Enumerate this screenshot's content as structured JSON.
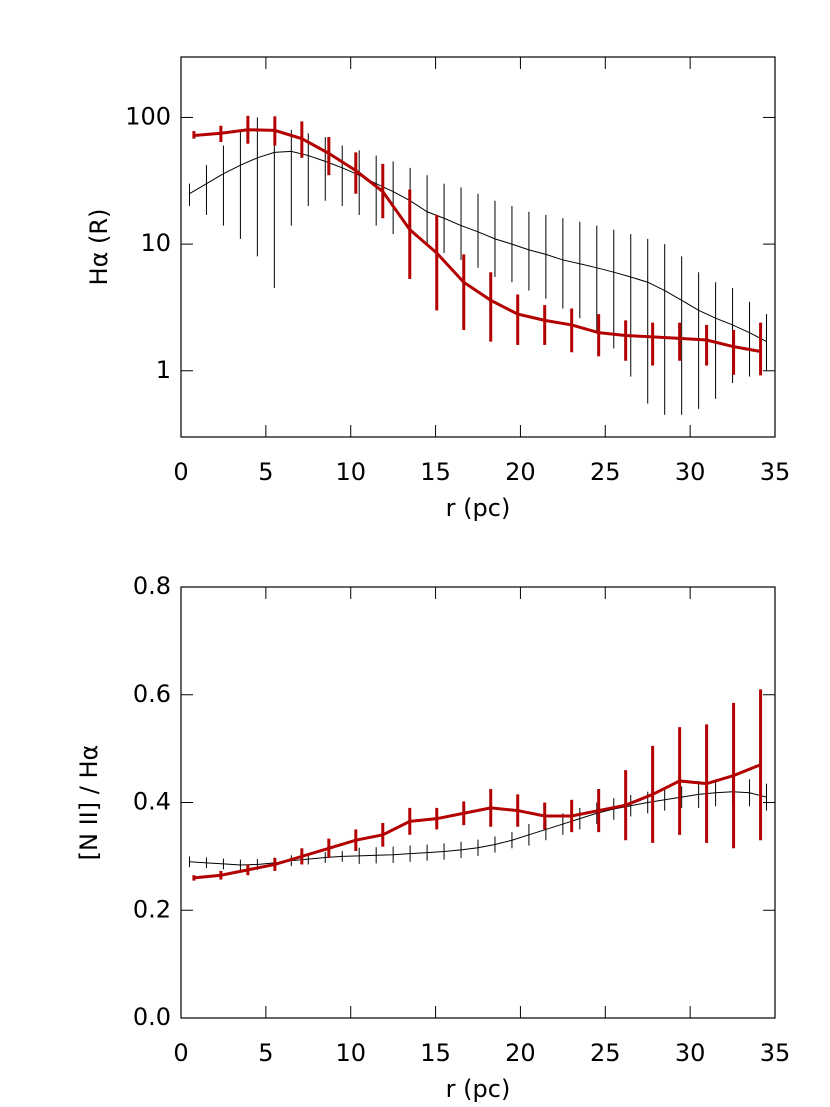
{
  "chart_data": [
    {
      "type": "line",
      "x_label": "r (pc)",
      "y_label": "Hα (R)",
      "log_y": true,
      "xlim": [
        0,
        35
      ],
      "xticks": [
        0,
        5,
        10,
        15,
        20,
        25,
        30,
        35
      ],
      "ylim": [
        0.3,
        300
      ],
      "yticks": [
        1,
        10,
        100
      ],
      "series": [
        {
          "color": "#000000",
          "x": [
            0.5,
            1.5,
            2.5,
            3.5,
            4.5,
            5.5,
            6.5,
            7.5,
            8.5,
            9.5,
            10.5,
            11.5,
            12.5,
            13.5,
            14.5,
            15.5,
            16.5,
            17.5,
            18.5,
            19.5,
            20.5,
            21.5,
            22.5,
            23.5,
            24.5,
            25.5,
            26.5,
            27.5,
            28.5,
            29.5,
            30.5,
            31.5,
            32.5,
            33.5,
            34.5
          ],
          "values": [
            25,
            30,
            36,
            42,
            48,
            53,
            54,
            50,
            45,
            40,
            35,
            30,
            26,
            22,
            18,
            16,
            14,
            12.5,
            11,
            10,
            9,
            8.3,
            7.5,
            7,
            6.5,
            6,
            5.5,
            5,
            4.3,
            3.6,
            3,
            2.6,
            2.3,
            2,
            1.7
          ],
          "lower": [
            20,
            17,
            14,
            11,
            8,
            4.5,
            14,
            20,
            22,
            20,
            17,
            14,
            12,
            11,
            10,
            8.5,
            7.5,
            6.5,
            5.5,
            5,
            4.3,
            3.7,
            3.1,
            2.6,
            2,
            1.5,
            0.9,
            0.55,
            0.45,
            0.45,
            0.5,
            0.6,
            0.8,
            0.9,
            1.0
          ],
          "upper": [
            30,
            42,
            60,
            80,
            100,
            90,
            80,
            75,
            70,
            60,
            55,
            50,
            45,
            40,
            35,
            30,
            28,
            25,
            22,
            20,
            18,
            17,
            16,
            15,
            14,
            13,
            12,
            11,
            10,
            8,
            6,
            5,
            4.5,
            3.5,
            2.8
          ]
        },
        {
          "color": "#b30000",
          "x": [
            0.76,
            2.35,
            3.94,
            5.53,
            7.12,
            8.71,
            10.3,
            11.89,
            13.48,
            15.07,
            16.66,
            18.25,
            19.84,
            21.43,
            23.02,
            24.61,
            26.2,
            27.79,
            29.38,
            30.97,
            32.56,
            34.15
          ],
          "values": [
            72,
            75,
            80,
            79,
            68,
            52,
            38,
            26,
            13,
            8.5,
            5,
            3.6,
            2.8,
            2.5,
            2.3,
            2.0,
            1.9,
            1.85,
            1.8,
            1.75,
            1.55,
            1.42
          ],
          "lower": [
            68,
            64,
            62,
            60,
            48,
            35,
            25,
            16,
            5.3,
            3,
            2.1,
            1.7,
            1.6,
            1.6,
            1.4,
            1.3,
            1.2,
            1.1,
            1.2,
            1.1,
            0.93,
            0.92
          ],
          "upper": [
            78,
            86,
            103,
            102,
            93,
            70,
            53,
            43,
            27,
            17,
            8.3,
            6,
            4,
            3.3,
            3.1,
            2.8,
            2.5,
            2.4,
            2.4,
            2.3,
            2.1,
            2.4
          ]
        }
      ]
    },
    {
      "type": "line",
      "x_label": "r (pc)",
      "y_label": "[N II] / Hα",
      "xlim": [
        0,
        35
      ],
      "xticks": [
        0,
        5,
        10,
        15,
        20,
        25,
        30,
        35
      ],
      "ylim": [
        0,
        0.8
      ],
      "yticks": [
        {
          "value": 0,
          "label": "0.0"
        },
        0.2,
        0.4,
        0.6,
        0.8
      ],
      "series": [
        {
          "color": "#000000",
          "x": [
            0.5,
            1.5,
            2.5,
            3.5,
            4.5,
            5.5,
            6.5,
            7.5,
            8.5,
            9.5,
            10.5,
            11.5,
            12.5,
            13.5,
            14.5,
            15.5,
            16.5,
            17.5,
            18.5,
            19.5,
            20.5,
            21.5,
            22.5,
            23.5,
            24.5,
            25.5,
            26.5,
            27.5,
            28.5,
            29.5,
            30.5,
            31.5,
            32.5,
            33.5,
            34.5
          ],
          "values": [
            0.29,
            0.288,
            0.286,
            0.284,
            0.285,
            0.288,
            0.292,
            0.295,
            0.298,
            0.3,
            0.301,
            0.302,
            0.303,
            0.305,
            0.307,
            0.309,
            0.312,
            0.316,
            0.322,
            0.33,
            0.34,
            0.35,
            0.36,
            0.37,
            0.38,
            0.388,
            0.394,
            0.4,
            0.405,
            0.41,
            0.415,
            0.418,
            0.42,
            0.418,
            0.41
          ],
          "error": [
            0.01,
            0.01,
            0.01,
            0.01,
            0.01,
            0.01,
            0.01,
            0.01,
            0.01,
            0.01,
            0.015,
            0.015,
            0.015,
            0.015,
            0.015,
            0.015,
            0.015,
            0.015,
            0.015,
            0.015,
            0.02,
            0.02,
            0.02,
            0.02,
            0.02,
            0.02,
            0.02,
            0.02,
            0.02,
            0.02,
            0.025,
            0.025,
            0.025,
            0.025,
            0.025
          ]
        },
        {
          "color": "#b30000",
          "x": [
            0.76,
            2.35,
            3.94,
            5.53,
            7.12,
            8.71,
            10.3,
            11.89,
            13.48,
            15.07,
            16.66,
            18.25,
            19.84,
            21.43,
            23.02,
            24.61,
            26.2,
            27.79,
            29.38,
            30.97,
            32.56,
            34.15
          ],
          "values": [
            0.26,
            0.265,
            0.275,
            0.285,
            0.3,
            0.315,
            0.33,
            0.34,
            0.365,
            0.37,
            0.38,
            0.39,
            0.385,
            0.375,
            0.375,
            0.385,
            0.395,
            0.415,
            0.44,
            0.435,
            0.45,
            0.47
          ],
          "error": [
            0.005,
            0.008,
            0.01,
            0.012,
            0.015,
            0.018,
            0.02,
            0.022,
            0.025,
            0.02,
            0.022,
            0.035,
            0.03,
            0.025,
            0.03,
            0.04,
            0.065,
            0.09,
            0.1,
            0.11,
            0.135,
            0.14
          ]
        }
      ]
    }
  ]
}
